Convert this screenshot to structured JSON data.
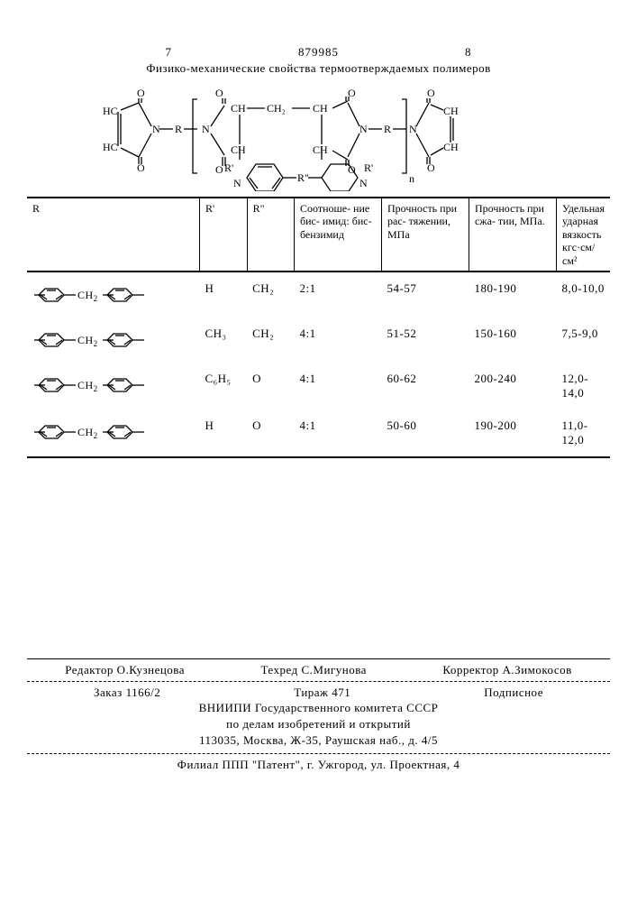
{
  "header": {
    "left_page": "7",
    "doc_number": "879985",
    "right_page": "8",
    "title": "Физико-механические свойства термоотверждаемых полимеров"
  },
  "structure_labels": {
    "hc": "HC",
    "ch": "CH",
    "o": "O",
    "n": "N",
    "r": "R",
    "r1": "R'",
    "r2": "R\"",
    "ch2": "CH₂",
    "n_sub": "n"
  },
  "table": {
    "columns": [
      "R",
      "R'",
      "R\"",
      "Соотноше-\nние бис-\nимид:\nбис-\nбензимид",
      "Прочность\nпри рас-\nтяжении,\nМПа",
      "Прочность\nпри сжа-\nтии,\nМПа.",
      "Удельная\nударная\nвязкость\nкгс·см/см²"
    ],
    "rows": [
      {
        "r_svg": true,
        "r1": "H",
        "r2": "CH₂",
        "ratio": "2:1",
        "tens": "54-57",
        "comp": "180-190",
        "imp": "8,0-10,0"
      },
      {
        "r_svg": true,
        "r1": "CH₃",
        "r2": "CH₂",
        "ratio": "4:1",
        "tens": "51-52",
        "comp": "150-160",
        "imp": "7,5-9,0"
      },
      {
        "r_svg": true,
        "r1": "C₆H₅",
        "r2": "O",
        "ratio": "4:1",
        "tens": "60-62",
        "comp": "200-240",
        "imp": "12,0-14,0"
      },
      {
        "r_svg": true,
        "r1": "H",
        "r2": "O",
        "ratio": "4:1",
        "tens": "50-60",
        "comp": "190-200",
        "imp": "11,0-12,0"
      }
    ]
  },
  "credits": {
    "editor_lbl": "Редактор",
    "editor": "О.Кузнецова",
    "tech_lbl": "Техред",
    "tech": "С.Мигунова",
    "corr_lbl": "Корректор",
    "corr": "А.Зимокосов",
    "order_lbl": "Заказ",
    "order": "1166/2",
    "tirazh_lbl": "Тираж",
    "tirazh": "471",
    "sub_lbl": "Подписное",
    "org1": "ВНИИПИ Государственного комитета СССР",
    "org2": "по делам изобретений и открытий",
    "addr": "113035, Москва, Ж-35, Раушская наб., д. 4/5",
    "branch": "Филиал ППП \"Патент\", г. Ужгород, ул. Проектная, 4"
  }
}
